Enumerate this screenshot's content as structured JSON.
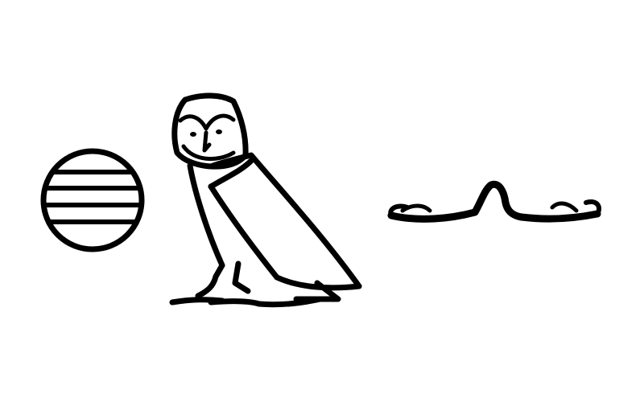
{
  "background": "#ffffff",
  "ink": "#000000",
  "glyphs": [
    {
      "name": "placenta-sign",
      "icon": "circle-with-horizontal-lines-glyph"
    },
    {
      "name": "owl-sign",
      "icon": "owl-glyph"
    },
    {
      "name": "snake-sign",
      "icon": "horned-viper-glyph"
    }
  ]
}
